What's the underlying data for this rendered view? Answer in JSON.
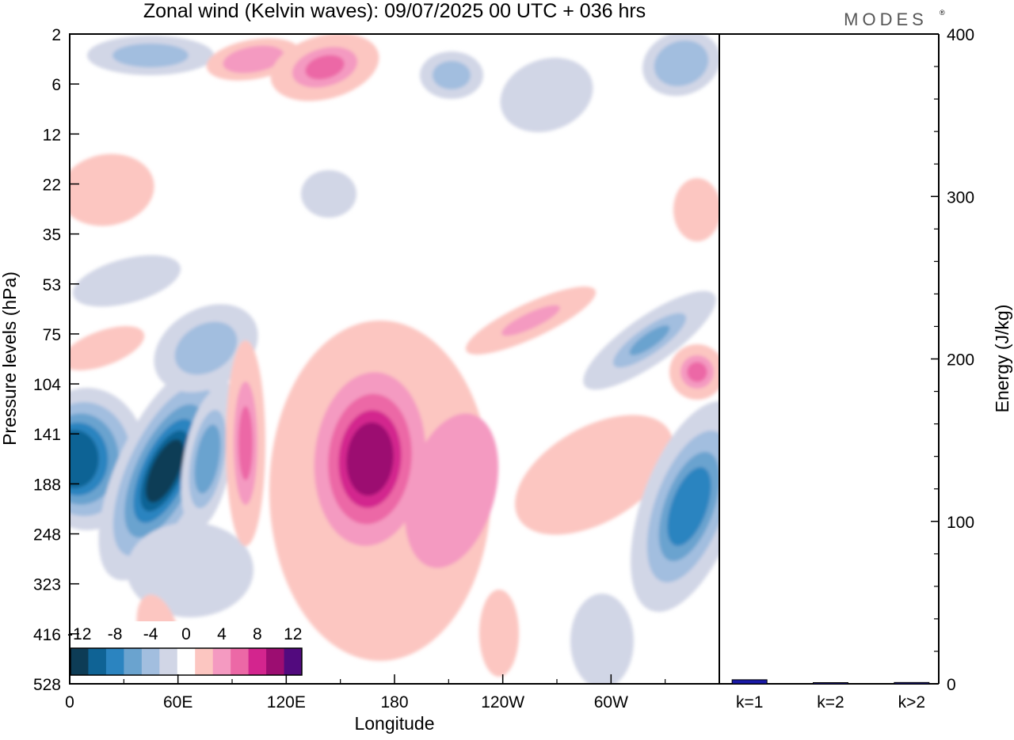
{
  "chart_data": [
    {
      "type": "heatmap",
      "title": "Zonal wind (Kelvin waves):  09/07/2025  00 UTC  + 036 hrs",
      "xlabel": "Longitude",
      "ylabel": "Pressure levels (hPa)",
      "x_ticks": [
        "0",
        "60E",
        "120E",
        "180",
        "120W",
        "60W"
      ],
      "x_range": [
        0,
        360
      ],
      "y_ticks": [
        "2",
        "6",
        "12",
        "22",
        "35",
        "53",
        "75",
        "104",
        "141",
        "188",
        "248",
        "323",
        "416",
        "528"
      ],
      "y_scale": "stretched (evenly spaced printed levels)",
      "colorbar": {
        "labels": [
          "-12",
          "-8",
          "-4",
          "0",
          "4",
          "8",
          "12"
        ],
        "colors": [
          "#0d3c56",
          "#0f6395",
          "#2b84c0",
          "#6aa3cf",
          "#a2bedf",
          "#d1d6e6",
          "#ffffff",
          "#fcc6c1",
          "#f49ac1",
          "#ec68a6",
          "#d3258e",
          "#9c0d71",
          "#520a7e"
        ]
      },
      "features": [
        {
          "name": "easterly maximum near 60E",
          "lon": 57,
          "level_hPa": 160,
          "value": -14
        },
        {
          "name": "westerly maximum near 170E",
          "lon": 167,
          "level_hPa": 150,
          "value": 13
        },
        {
          "name": "easterly maximum near Greenwich",
          "lon": 8,
          "level_hPa": 150,
          "value": -9
        },
        {
          "name": "easterly core near 0 / 60W edge",
          "lon": 357,
          "level_hPa": 175,
          "value": -9
        }
      ]
    },
    {
      "type": "bar",
      "ylabel": "Energy (J/kg)",
      "ylim": [
        0,
        400
      ],
      "y_ticks": [
        "0",
        "100",
        "200",
        "300",
        "400"
      ],
      "categories": [
        "k=1",
        "k=2",
        "k>2"
      ],
      "values": [
        2.5,
        0.3,
        0.8
      ],
      "bar_color": "#1a1aa8"
    }
  ],
  "brand": "MODES",
  "brand_mark": "®"
}
